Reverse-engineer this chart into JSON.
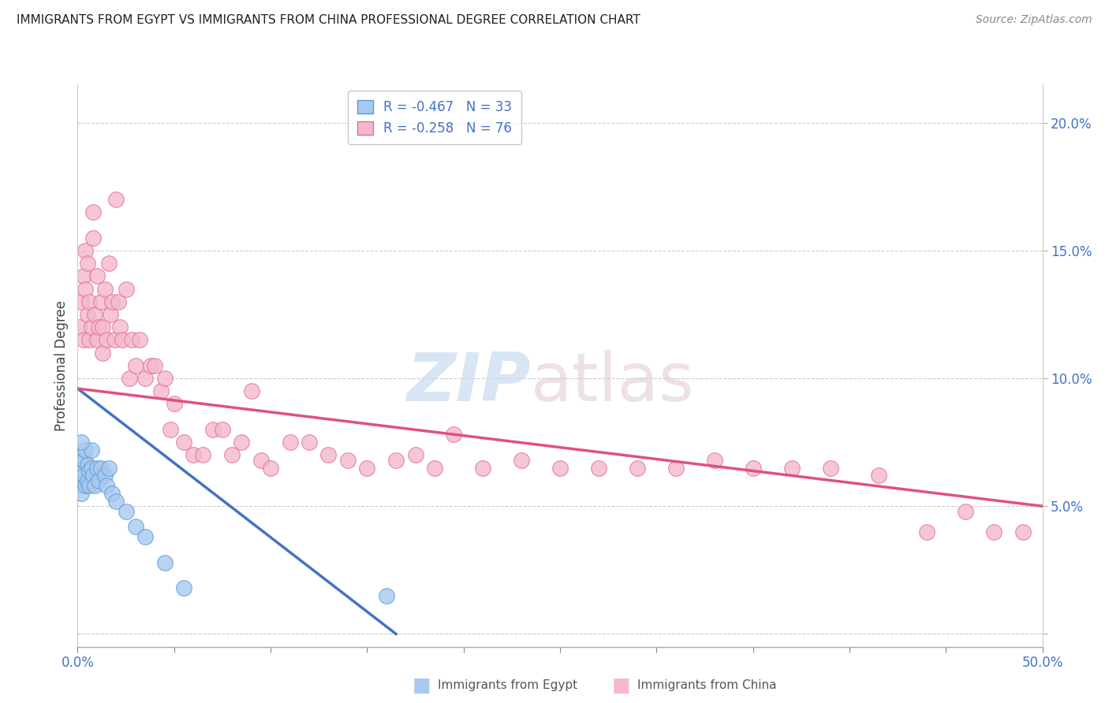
{
  "title": "IMMIGRANTS FROM EGYPT VS IMMIGRANTS FROM CHINA PROFESSIONAL DEGREE CORRELATION CHART",
  "source": "Source: ZipAtlas.com",
  "ylabel": "Professional Degree",
  "ytick_values": [
    0.0,
    0.05,
    0.1,
    0.15,
    0.2
  ],
  "ytick_labels": [
    "",
    "5.0%",
    "10.0%",
    "15.0%",
    "20.0%"
  ],
  "xlim": [
    0.0,
    0.5
  ],
  "ylim": [
    -0.005,
    0.215
  ],
  "legend_egypt": "R = -0.467   N = 33",
  "legend_china": "R = -0.258   N = 76",
  "egypt_color": "#a8c8f0",
  "egypt_edge_color": "#5b9bd5",
  "china_color": "#f4b8cc",
  "china_edge_color": "#e07090",
  "egypt_line_color": "#4472c4",
  "china_line_color": "#e05080",
  "watermark_zip": "ZIP",
  "watermark_atlas": "atlas",
  "egypt_x": [
    0.001,
    0.001,
    0.001,
    0.002,
    0.002,
    0.002,
    0.003,
    0.003,
    0.004,
    0.004,
    0.005,
    0.005,
    0.006,
    0.006,
    0.007,
    0.007,
    0.008,
    0.009,
    0.01,
    0.011,
    0.012,
    0.014,
    0.015,
    0.016,
    0.018,
    0.02,
    0.025,
    0.03,
    0.035,
    0.045,
    0.055,
    0.16,
    0.002
  ],
  "egypt_y": [
    0.062,
    0.065,
    0.058,
    0.07,
    0.063,
    0.055,
    0.068,
    0.062,
    0.072,
    0.058,
    0.066,
    0.06,
    0.064,
    0.058,
    0.072,
    0.065,
    0.062,
    0.058,
    0.065,
    0.06,
    0.065,
    0.062,
    0.058,
    0.065,
    0.055,
    0.052,
    0.048,
    0.042,
    0.038,
    0.028,
    0.018,
    0.015,
    0.075
  ],
  "china_x": [
    0.001,
    0.002,
    0.003,
    0.003,
    0.004,
    0.004,
    0.005,
    0.005,
    0.006,
    0.006,
    0.007,
    0.008,
    0.008,
    0.009,
    0.01,
    0.01,
    0.011,
    0.012,
    0.013,
    0.013,
    0.014,
    0.015,
    0.016,
    0.017,
    0.018,
    0.019,
    0.02,
    0.021,
    0.022,
    0.023,
    0.025,
    0.027,
    0.028,
    0.03,
    0.032,
    0.035,
    0.038,
    0.04,
    0.043,
    0.045,
    0.048,
    0.05,
    0.055,
    0.06,
    0.065,
    0.07,
    0.075,
    0.08,
    0.085,
    0.09,
    0.095,
    0.1,
    0.11,
    0.12,
    0.13,
    0.14,
    0.15,
    0.165,
    0.175,
    0.185,
    0.195,
    0.21,
    0.23,
    0.25,
    0.27,
    0.29,
    0.31,
    0.33,
    0.35,
    0.37,
    0.39,
    0.415,
    0.44,
    0.46,
    0.475,
    0.49
  ],
  "china_y": [
    0.12,
    0.13,
    0.115,
    0.14,
    0.135,
    0.15,
    0.125,
    0.145,
    0.13,
    0.115,
    0.12,
    0.155,
    0.165,
    0.125,
    0.115,
    0.14,
    0.12,
    0.13,
    0.12,
    0.11,
    0.135,
    0.115,
    0.145,
    0.125,
    0.13,
    0.115,
    0.17,
    0.13,
    0.12,
    0.115,
    0.135,
    0.1,
    0.115,
    0.105,
    0.115,
    0.1,
    0.105,
    0.105,
    0.095,
    0.1,
    0.08,
    0.09,
    0.075,
    0.07,
    0.07,
    0.08,
    0.08,
    0.07,
    0.075,
    0.095,
    0.068,
    0.065,
    0.075,
    0.075,
    0.07,
    0.068,
    0.065,
    0.068,
    0.07,
    0.065,
    0.078,
    0.065,
    0.068,
    0.065,
    0.065,
    0.065,
    0.065,
    0.068,
    0.065,
    0.065,
    0.065,
    0.062,
    0.04,
    0.048,
    0.04,
    0.04
  ],
  "china_line_x0": 0.0,
  "china_line_y0": 0.096,
  "china_line_x1": 0.5,
  "china_line_y1": 0.05,
  "egypt_line_x0": 0.0,
  "egypt_line_y0": 0.096,
  "egypt_line_x1": 0.165,
  "egypt_line_y1": 0.0
}
